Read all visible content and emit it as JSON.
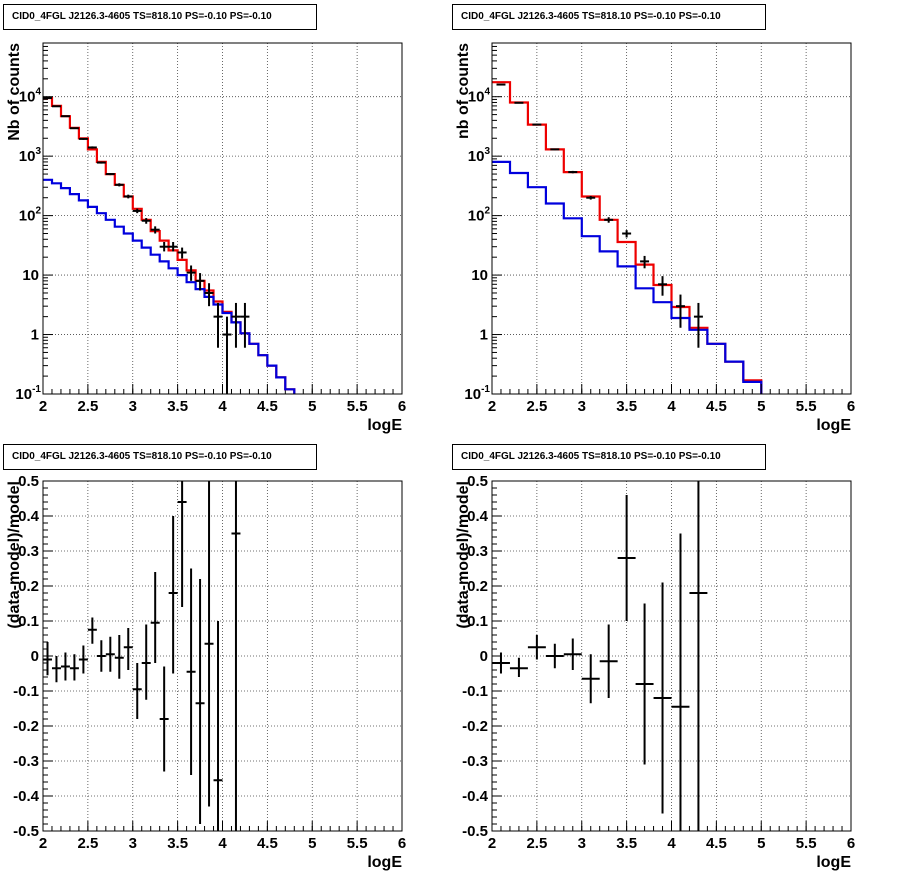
{
  "chart_data": [
    {
      "type": "line",
      "title": "CID0_4FGL J2126.3-4605 TS=818.10 PS=-0.10 PS=-0.10",
      "xlabel": "logE",
      "ylabel": "Nb of counts",
      "xlim": [
        2,
        6
      ],
      "ylim": [
        0.1,
        80000
      ],
      "yscale": "log",
      "grid": true,
      "xticks": [
        "2",
        "2.5",
        "3",
        "3.5",
        "4",
        "4.5",
        "5",
        "5.5",
        "6"
      ],
      "yticks": [
        {
          "value": 0.1,
          "base": "10",
          "exp": "-1"
        },
        {
          "value": 1,
          "label": "1"
        },
        {
          "value": 10,
          "label": "10"
        },
        {
          "value": 100,
          "base": "10",
          "exp": "2"
        },
        {
          "value": 1000,
          "base": "10",
          "exp": "3"
        },
        {
          "value": 10000,
          "base": "10",
          "exp": "4"
        }
      ],
      "series": [
        {
          "color": "#ee0000",
          "style": "step",
          "edges": [
            2.0,
            2.1,
            2.2,
            2.3,
            2.4,
            2.5,
            2.6,
            2.7,
            2.8,
            2.9,
            3.0,
            3.1,
            3.2,
            3.3,
            3.4,
            3.5,
            3.6,
            3.7,
            3.8,
            3.9,
            4.0,
            4.1,
            4.2,
            4.3,
            4.4,
            4.5,
            4.6,
            4.7,
            4.8,
            4.9,
            5.0,
            5.1,
            5.2,
            5.3,
            5.4,
            5.5,
            5.6,
            5.7,
            5.8,
            5.9,
            6.0
          ],
          "values": [
            9500,
            7000,
            4700,
            3000,
            2000,
            1300,
            800,
            500,
            330,
            210,
            130,
            85,
            55,
            38,
            26,
            18,
            12,
            8,
            5.5,
            3.6,
            2.4,
            1.6,
            1.05,
            0.7,
            0.45,
            0.3,
            0.19,
            0.12,
            0.09,
            0.09,
            0.09,
            0.09,
            0.09,
            0.09,
            0.09,
            0.09,
            0.09,
            0.09,
            0.09,
            0.09
          ]
        },
        {
          "color": "#0000dd",
          "style": "step",
          "edges": [
            2.0,
            2.1,
            2.2,
            2.3,
            2.4,
            2.5,
            2.6,
            2.7,
            2.8,
            2.9,
            3.0,
            3.1,
            3.2,
            3.3,
            3.4,
            3.5,
            3.6,
            3.7,
            3.8,
            3.9,
            4.0,
            4.1,
            4.2,
            4.3,
            4.4,
            4.5,
            4.6,
            4.7,
            4.8,
            4.9,
            5.0,
            5.1,
            5.2,
            5.3,
            5.4,
            5.5,
            5.6,
            5.7,
            5.8,
            5.9,
            6.0
          ],
          "values": [
            400,
            350,
            290,
            230,
            180,
            140,
            110,
            85,
            65,
            50,
            38,
            29,
            22,
            17,
            13,
            10,
            7.6,
            5.8,
            4.3,
            3.2,
            2.3,
            1.6,
            1.05,
            0.7,
            0.45,
            0.3,
            0.19,
            0.12,
            0.09,
            0.09,
            0.09,
            0.09,
            0.09,
            0.09,
            0.09,
            0.09,
            0.09,
            0.09,
            0.09,
            0.09
          ]
        },
        {
          "color": "#000000",
          "style": "points",
          "points": [
            {
              "x": 2.05,
              "y": 9500,
              "lo": 9300,
              "hi": 9700
            },
            {
              "x": 2.15,
              "y": 6900,
              "lo": 6750,
              "hi": 7050
            },
            {
              "x": 2.25,
              "y": 4700,
              "lo": 4580,
              "hi": 4820
            },
            {
              "x": 2.35,
              "y": 2950,
              "lo": 2860,
              "hi": 3040
            },
            {
              "x": 2.45,
              "y": 1950,
              "lo": 1880,
              "hi": 2020
            },
            {
              "x": 2.55,
              "y": 1400,
              "lo": 1340,
              "hi": 1460
            },
            {
              "x": 2.65,
              "y": 780,
              "lo": 750,
              "hi": 810
            },
            {
              "x": 2.75,
              "y": 500,
              "lo": 480,
              "hi": 520
            },
            {
              "x": 2.85,
              "y": 330,
              "lo": 310,
              "hi": 350
            },
            {
              "x": 2.95,
              "y": 210,
              "lo": 195,
              "hi": 225
            },
            {
              "x": 3.05,
              "y": 120,
              "lo": 110,
              "hi": 131
            },
            {
              "x": 3.15,
              "y": 82,
              "lo": 73,
              "hi": 91
            },
            {
              "x": 3.25,
              "y": 58,
              "lo": 50,
              "hi": 66
            },
            {
              "x": 3.35,
              "y": 30,
              "lo": 25,
              "hi": 36
            },
            {
              "x": 3.45,
              "y": 30,
              "lo": 25,
              "hi": 36
            },
            {
              "x": 3.55,
              "y": 24,
              "lo": 19,
              "hi": 29
            },
            {
              "x": 3.65,
              "y": 11,
              "lo": 8,
              "hi": 14.5
            },
            {
              "x": 3.75,
              "y": 8,
              "lo": 5.5,
              "hi": 10.8
            },
            {
              "x": 3.85,
              "y": 5,
              "lo": 3,
              "hi": 7.3
            },
            {
              "x": 3.95,
              "y": 2,
              "lo": 0.6,
              "hi": 3.4
            },
            {
              "x": 4.05,
              "y": 1,
              "lo": 0.1,
              "hi": 2
            },
            {
              "x": 4.15,
              "y": 2,
              "lo": 0.6,
              "hi": 3.4
            },
            {
              "x": 4.25,
              "y": 2,
              "lo": 0.6,
              "hi": 3.4
            }
          ]
        }
      ]
    },
    {
      "type": "line",
      "title": "CID0_4FGL J2126.3-4605 TS=818.10 PS=-0.10 PS=-0.10",
      "xlabel": "logE",
      "ylabel": "nb of counts",
      "xlim": [
        2,
        6
      ],
      "ylim": [
        0.1,
        80000
      ],
      "yscale": "log",
      "grid": true,
      "xticks": [
        "2",
        "2.5",
        "3",
        "3.5",
        "4",
        "4.5",
        "5",
        "5.5",
        "6"
      ],
      "yticks": [
        {
          "value": 0.1,
          "base": "10",
          "exp": "-1"
        },
        {
          "value": 1,
          "label": "1"
        },
        {
          "value": 10,
          "label": "10"
        },
        {
          "value": 100,
          "base": "10",
          "exp": "2"
        },
        {
          "value": 1000,
          "base": "10",
          "exp": "3"
        },
        {
          "value": 10000,
          "base": "10",
          "exp": "4"
        }
      ],
      "series": [
        {
          "color": "#ee0000",
          "style": "step",
          "edges": [
            2.0,
            2.2,
            2.4,
            2.6,
            2.8,
            3.0,
            3.2,
            3.4,
            3.6,
            3.8,
            4.0,
            4.2,
            4.4,
            4.6,
            4.8,
            5.0,
            5.2,
            5.4,
            5.6,
            5.8,
            6.0
          ],
          "values": [
            17500,
            8000,
            3400,
            1300,
            540,
            210,
            85,
            36,
            15,
            6.8,
            2.9,
            1.3,
            0.7,
            0.35,
            0.17,
            0.09,
            0.09,
            0.09,
            0.09,
            0.09
          ]
        },
        {
          "color": "#0000dd",
          "style": "step",
          "edges": [
            2.0,
            2.2,
            2.4,
            2.6,
            2.8,
            3.0,
            3.2,
            3.4,
            3.6,
            3.8,
            4.0,
            4.2,
            4.4,
            4.6,
            4.8,
            5.0,
            5.2,
            5.4,
            5.6,
            5.8,
            6.0
          ],
          "values": [
            800,
            520,
            300,
            160,
            90,
            45,
            25,
            14,
            6,
            3.5,
            1.9,
            1.2,
            0.7,
            0.35,
            0.16,
            0.09,
            0.09,
            0.09,
            0.09,
            0.09
          ]
        },
        {
          "color": "#000000",
          "style": "points",
          "points": [
            {
              "x": 2.1,
              "y": 16000,
              "lo": 15700,
              "hi": 16300
            },
            {
              "x": 2.3,
              "y": 7900,
              "lo": 7700,
              "hi": 8100
            },
            {
              "x": 2.5,
              "y": 3400,
              "lo": 3300,
              "hi": 3500
            },
            {
              "x": 2.7,
              "y": 1300,
              "lo": 1260,
              "hi": 1340
            },
            {
              "x": 2.9,
              "y": 540,
              "lo": 515,
              "hi": 565
            },
            {
              "x": 3.1,
              "y": 200,
              "lo": 186,
              "hi": 214
            },
            {
              "x": 3.3,
              "y": 85,
              "lo": 76,
              "hi": 94
            },
            {
              "x": 3.5,
              "y": 50,
              "lo": 43,
              "hi": 57
            },
            {
              "x": 3.7,
              "y": 17,
              "lo": 13,
              "hi": 21
            },
            {
              "x": 3.9,
              "y": 7,
              "lo": 4.5,
              "hi": 9.6
            },
            {
              "x": 4.1,
              "y": 3,
              "lo": 1.3,
              "hi": 4.7
            },
            {
              "x": 4.3,
              "y": 2,
              "lo": 0.6,
              "hi": 3.4
            }
          ]
        }
      ]
    },
    {
      "type": "scatter",
      "title": "CID0_4FGL J2126.3-4605 TS=818.10 PS=-0.10 PS=-0.10",
      "xlabel": "logE",
      "ylabel": "(data-model)/model",
      "xlim": [
        2,
        6
      ],
      "ylim": [
        -0.5,
        0.5
      ],
      "yscale": "linear",
      "grid": true,
      "xticks": [
        "2",
        "2.5",
        "3",
        "3.5",
        "4",
        "4.5",
        "5",
        "5.5",
        "6"
      ],
      "yticks": [
        "-0.5",
        "-0.4",
        "-0.3",
        "-0.2",
        "-0.1",
        "0",
        "0.1",
        "0.2",
        "0.3",
        "0.4",
        "0.5"
      ],
      "series": [
        {
          "color": "#000000",
          "style": "points",
          "halfwidth": 0.05,
          "points": [
            {
              "x": 2.05,
              "y": -0.01,
              "lo": -0.055,
              "hi": 0.04
            },
            {
              "x": 2.15,
              "y": -0.035,
              "lo": -0.075,
              "hi": 0.0
            },
            {
              "x": 2.25,
              "y": -0.03,
              "lo": -0.07,
              "hi": 0.01
            },
            {
              "x": 2.35,
              "y": -0.035,
              "lo": -0.07,
              "hi": 0.005
            },
            {
              "x": 2.45,
              "y": -0.01,
              "lo": -0.05,
              "hi": 0.03
            },
            {
              "x": 2.55,
              "y": 0.075,
              "lo": 0.035,
              "hi": 0.11
            },
            {
              "x": 2.65,
              "y": 0.0,
              "lo": -0.045,
              "hi": 0.045
            },
            {
              "x": 2.75,
              "y": 0.005,
              "lo": -0.045,
              "hi": 0.055
            },
            {
              "x": 2.85,
              "y": -0.005,
              "lo": -0.065,
              "hi": 0.06
            },
            {
              "x": 2.95,
              "y": 0.025,
              "lo": -0.04,
              "hi": 0.08
            },
            {
              "x": 3.05,
              "y": -0.095,
              "lo": -0.18,
              "hi": -0.02
            },
            {
              "x": 3.15,
              "y": -0.02,
              "lo": -0.125,
              "hi": 0.09
            },
            {
              "x": 3.25,
              "y": 0.095,
              "lo": -0.02,
              "hi": 0.24
            },
            {
              "x": 3.35,
              "y": -0.18,
              "lo": -0.33,
              "hi": -0.03
            },
            {
              "x": 3.45,
              "y": 0.18,
              "lo": -0.05,
              "hi": 0.4
            },
            {
              "x": 3.55,
              "y": 0.44,
              "lo": 0.14,
              "hi": 0.5
            },
            {
              "x": 3.65,
              "y": -0.045,
              "lo": -0.34,
              "hi": 0.25
            },
            {
              "x": 3.75,
              "y": -0.135,
              "lo": -0.48,
              "hi": 0.22
            },
            {
              "x": 3.85,
              "y": 0.035,
              "lo": -0.43,
              "hi": 0.5
            },
            {
              "x": 3.95,
              "y": -0.355,
              "lo": -0.5,
              "hi": 0.1
            },
            {
              "x": 4.15,
              "y": 0.35,
              "lo": -0.5,
              "hi": 0.5
            }
          ]
        }
      ]
    },
    {
      "type": "scatter",
      "title": "CID0_4FGL J2126.3-4605 TS=818.10 PS=-0.10 PS=-0.10",
      "xlabel": "logE",
      "ylabel": "(data-model)/model",
      "xlim": [
        2,
        6
      ],
      "ylim": [
        -0.5,
        0.5
      ],
      "yscale": "linear",
      "grid": true,
      "xticks": [
        "2",
        "2.5",
        "3",
        "3.5",
        "4",
        "4.5",
        "5",
        "5.5",
        "6"
      ],
      "yticks": [
        "-0.5",
        "-0.4",
        "-0.3",
        "-0.2",
        "-0.1",
        "0",
        "0.1",
        "0.2",
        "0.3",
        "0.4",
        "0.5"
      ],
      "series": [
        {
          "color": "#000000",
          "style": "points",
          "halfwidth": 0.1,
          "points": [
            {
              "x": 2.1,
              "y": -0.02,
              "lo": -0.05,
              "hi": 0.01
            },
            {
              "x": 2.3,
              "y": -0.035,
              "lo": -0.06,
              "hi": -0.005
            },
            {
              "x": 2.5,
              "y": 0.025,
              "lo": -0.01,
              "hi": 0.06
            },
            {
              "x": 2.7,
              "y": 0.0,
              "lo": -0.035,
              "hi": 0.035
            },
            {
              "x": 2.9,
              "y": 0.005,
              "lo": -0.04,
              "hi": 0.05
            },
            {
              "x": 3.1,
              "y": -0.065,
              "lo": -0.135,
              "hi": 0.005
            },
            {
              "x": 3.3,
              "y": -0.015,
              "lo": -0.12,
              "hi": 0.09
            },
            {
              "x": 3.5,
              "y": 0.28,
              "lo": 0.1,
              "hi": 0.46
            },
            {
              "x": 3.7,
              "y": -0.08,
              "lo": -0.31,
              "hi": 0.15
            },
            {
              "x": 3.9,
              "y": -0.12,
              "lo": -0.45,
              "hi": 0.21
            },
            {
              "x": 4.1,
              "y": -0.145,
              "lo": -0.5,
              "hi": 0.35
            },
            {
              "x": 4.3,
              "y": 0.18,
              "lo": -0.5,
              "hi": 0.5
            }
          ]
        }
      ]
    }
  ]
}
